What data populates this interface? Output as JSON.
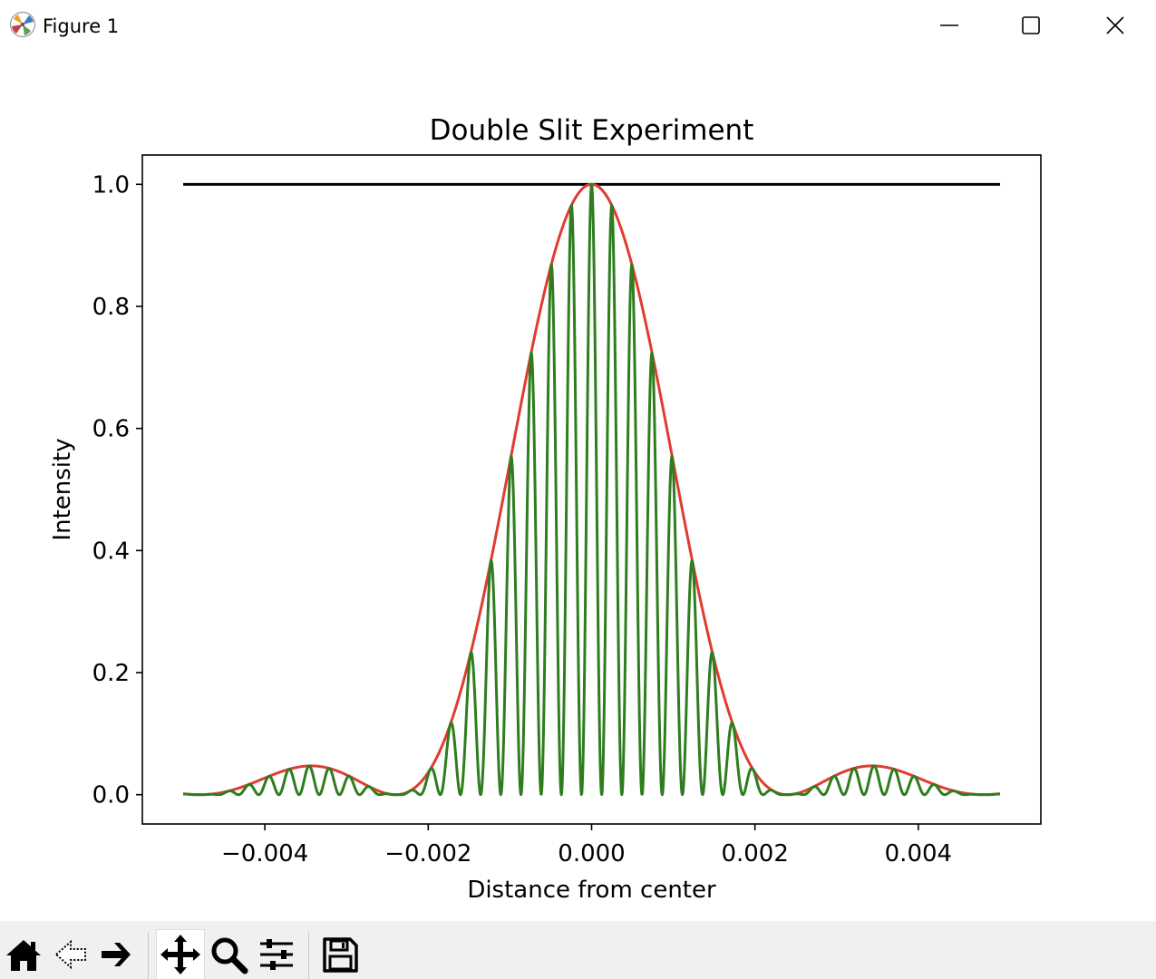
{
  "window": {
    "title": "Figure 1"
  },
  "toolbar": {
    "buttons": [
      {
        "name": "home",
        "icon": "home-icon"
      },
      {
        "name": "back",
        "icon": "back-arrow-icon"
      },
      {
        "name": "forward",
        "icon": "forward-arrow-icon"
      },
      {
        "name": "pan",
        "icon": "pan-move-icon",
        "active": true
      },
      {
        "name": "zoom",
        "icon": "zoom-magnifier-icon"
      },
      {
        "name": "configure-subplots",
        "icon": "sliders-icon"
      },
      {
        "name": "save",
        "icon": "save-disk-icon"
      }
    ]
  },
  "colors": {
    "envelope": "#e03c31",
    "interference": "#2e7d1f",
    "reference": "#000000",
    "toolbar_bg": "#f0f0f0"
  },
  "chart_data": {
    "type": "line",
    "title": "Double Slit Experiment",
    "xlabel": "Distance from center",
    "ylabel": "Intensity",
    "xlim": [
      -0.0055,
      0.0055
    ],
    "ylim": [
      -0.048,
      1.048
    ],
    "xticks": [
      -0.004,
      -0.002,
      0.0,
      0.002,
      0.004
    ],
    "xtick_labels": [
      "−0.004",
      "−0.002",
      "0.000",
      "0.002",
      "0.004"
    ],
    "yticks": [
      0.0,
      0.2,
      0.4,
      0.6,
      0.8,
      1.0
    ],
    "ytick_labels": [
      "0.0",
      "0.2",
      "0.4",
      "0.6",
      "0.8",
      "1.0"
    ],
    "grid": false,
    "x_range": [
      -0.005,
      0.005
    ],
    "series": [
      {
        "role": "reference",
        "color": "#000000",
        "description": "constant",
        "value": 1.0
      },
      {
        "role": "single-slit envelope",
        "color": "#e03c31",
        "function": "sinc2",
        "first_zero": 0.0024
      },
      {
        "role": "double-slit intensity",
        "color": "#2e7d1f",
        "function": "sinc2_cos2",
        "first_zero": 0.0024,
        "fringe_period": 0.000247
      }
    ]
  }
}
